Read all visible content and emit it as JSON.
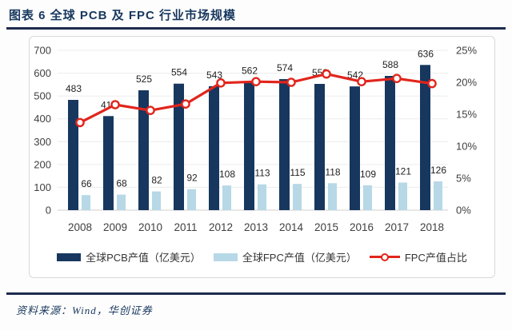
{
  "header": {
    "title": "图表 6  全球 PCB 及 FPC 行业市场规模"
  },
  "footer": {
    "source": "资料来源：Wind，华创证券"
  },
  "colors": {
    "title_navy": "#17375e",
    "rule_navy": "#1d2b4f",
    "pcb_bar": "#17375e",
    "fpc_bar": "#b7d8e6",
    "ratio_line": "#e1251c",
    "grid": "#ececec",
    "axis_baseline": "#cfcfcf",
    "panel_border": "#d9d9d9",
    "tick_text": "#3f3f3f"
  },
  "chart_data": {
    "type": "combo",
    "categories": [
      "2008",
      "2009",
      "2010",
      "2011",
      "2012",
      "2013",
      "2014",
      "2015",
      "2016",
      "2017",
      "2018"
    ],
    "series": [
      {
        "name": "全球PCB产值（亿美元）",
        "chart_type": "bar",
        "axis": "left",
        "values": [
          483,
          412,
          525,
          554,
          543,
          562,
          574,
          553,
          542,
          588,
          636
        ]
      },
      {
        "name": "全球FPC产值（亿美元）",
        "chart_type": "bar",
        "axis": "left",
        "values": [
          66,
          68,
          82,
          92,
          108,
          113,
          115,
          118,
          109,
          121,
          126
        ]
      },
      {
        "name": "FPC产值占比",
        "chart_type": "line",
        "axis": "right",
        "values_percent": [
          13.7,
          16.5,
          15.6,
          16.6,
          19.9,
          20.1,
          20.0,
          21.3,
          20.1,
          20.6,
          19.8
        ]
      }
    ],
    "left_axis": {
      "min": 0,
      "max": 700,
      "step": 100,
      "tick_labels": [
        "0",
        "100",
        "200",
        "300",
        "400",
        "500",
        "600",
        "700"
      ]
    },
    "right_axis": {
      "min": 0,
      "max": 25,
      "step": 5,
      "tick_labels": [
        "0%",
        "5%",
        "10%",
        "15%",
        "20%",
        "25%"
      ]
    },
    "grid": true,
    "legend_position": "bottom",
    "bar_value_labels_shown": true
  }
}
